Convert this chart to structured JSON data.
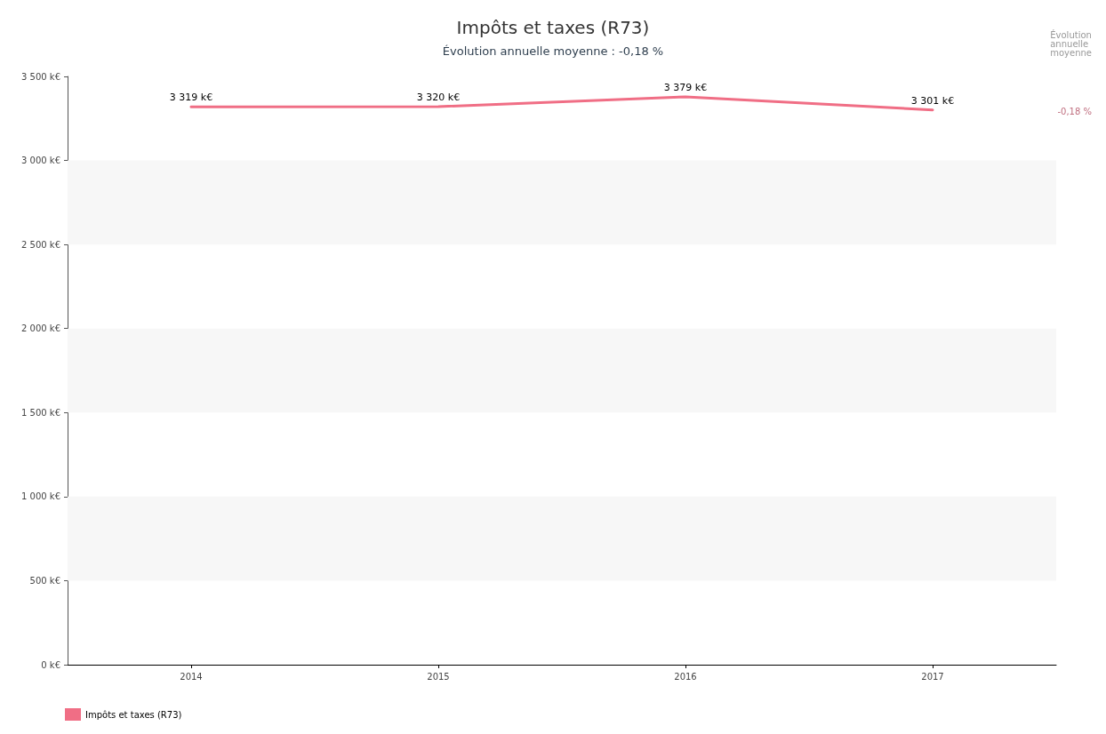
{
  "chart_data": {
    "type": "line",
    "title": "Impôts et taxes (R73)",
    "subtitle": "Évolution annuelle moyenne : -0,18 %",
    "categories": [
      "2014",
      "2015",
      "2016",
      "2017"
    ],
    "series": [
      {
        "name": "Impôts et taxes (R73)",
        "color": "#f06e85",
        "values": [
          3319,
          3320,
          3379,
          3301
        ],
        "value_labels": [
          "3 319 k€",
          "3 320 k€",
          "3 379 k€",
          "3 301 k€"
        ]
      }
    ],
    "ylim": [
      0,
      3500
    ],
    "yticks": [
      {
        "value": 0,
        "label": "0 k€"
      },
      {
        "value": 500,
        "label": "500 k€"
      },
      {
        "value": 1000,
        "label": "1 000 k€"
      },
      {
        "value": 1500,
        "label": "1 500 k€"
      },
      {
        "value": 2000,
        "label": "2 000 k€"
      },
      {
        "value": 2500,
        "label": "2 500 k€"
      },
      {
        "value": 3000,
        "label": "3 000 k€"
      },
      {
        "value": 3500,
        "label": "3 500 k€"
      }
    ],
    "bands": [
      {
        "axis": "y",
        "from": 500,
        "to": 1000,
        "color": "#f7f7f7"
      },
      {
        "axis": "y",
        "from": 1500,
        "to": 2000,
        "color": "#f7f7f7"
      },
      {
        "axis": "y",
        "from": 2500,
        "to": 3000,
        "color": "#f7f7f7"
      }
    ],
    "annotations": [
      "Évolution annuelle moyenne",
      "-0,18 %"
    ],
    "grid": false,
    "legend": "bottom left",
    "marker": "none",
    "line_style": "solid"
  }
}
